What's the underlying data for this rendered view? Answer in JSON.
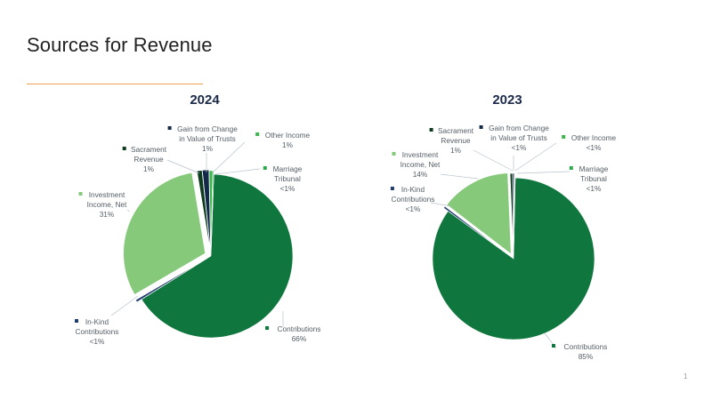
{
  "slide": {
    "title": "Sources for Revenue",
    "page_number": "1",
    "accent_color": "#f0a050"
  },
  "chart_data": [
    {
      "type": "pie",
      "title": "2024",
      "categories": [
        "Contributions",
        "In-Kind Contributions",
        "Investment Income, Net",
        "Sacrament Revenue",
        "Gain from Change in Value of Trusts",
        "Other Income",
        "Marriage Tribunal"
      ],
      "values": [
        66,
        0.5,
        31,
        1,
        1.3,
        0.7,
        0.2
      ],
      "labels": [
        {
          "lines": [
            "Contributions",
            "66%"
          ]
        },
        {
          "lines": [
            "In-Kind",
            "Contributions",
            "<1%"
          ]
        },
        {
          "lines": [
            "Investment",
            "Income, Net",
            "31%"
          ]
        },
        {
          "lines": [
            "Sacrament",
            "Revenue",
            "1%"
          ]
        },
        {
          "lines": [
            "Gain from Change",
            "in Value of Trusts",
            "1%"
          ]
        },
        {
          "lines": [
            "Other Income",
            "1%"
          ]
        },
        {
          "lines": [
            "Marriage",
            "Tribunal",
            "<1%"
          ]
        }
      ],
      "colors": [
        "#0f773e",
        "#1f3e6e",
        "#86c97a",
        "#0d3b1e",
        "#13294a",
        "#3cb54a",
        "#2ea84f"
      ]
    },
    {
      "type": "pie",
      "title": "2023",
      "categories": [
        "Contributions",
        "In-Kind Contributions",
        "Investment Income, Net",
        "Sacrament Revenue",
        "Gain from Change in Value of Trusts",
        "Other Income",
        "Marriage Tribunal"
      ],
      "values": [
        85,
        0.4,
        14,
        0.5,
        0.3,
        0.1,
        0.1
      ],
      "labels": [
        {
          "lines": [
            "Contributions",
            "85%"
          ]
        },
        {
          "lines": [
            "In-Kind",
            "Contributions",
            "<1%"
          ]
        },
        {
          "lines": [
            "Investment",
            "Income, Net",
            "14%"
          ]
        },
        {
          "lines": [
            "Sacrament",
            "Revenue",
            "1%"
          ]
        },
        {
          "lines": [
            "Gain from Change",
            "in Value of Trusts",
            "<1%"
          ]
        },
        {
          "lines": [
            "Other Income",
            "<1%"
          ]
        },
        {
          "lines": [
            "Marriage",
            "Tribunal",
            "<1%"
          ]
        }
      ],
      "colors": [
        "#0f773e",
        "#1f3e6e",
        "#86c97a",
        "#0d3b1e",
        "#13294a",
        "#3cb54a",
        "#2ea84f"
      ]
    }
  ]
}
